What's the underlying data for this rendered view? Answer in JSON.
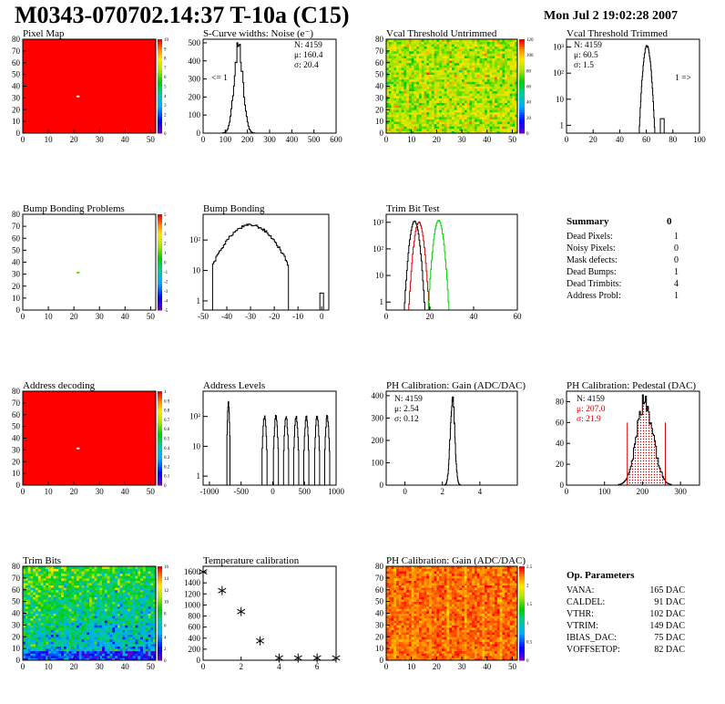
{
  "header": {
    "title": "M0343-070702.14:37 T-10a (C15)",
    "date": "Mon Jul  2 19:02:28 2007"
  },
  "panels": {
    "pixel_map": {
      "title": "Pixel Map"
    },
    "scurve": {
      "title": "S-Curve widths: Noise (e⁻)",
      "stats": [
        "N: 4159",
        "μ: 160.4",
        "σ: 20.4"
      ],
      "underflow_label": "<= 1"
    },
    "vcal_untrimmed": {
      "title": "Vcal Threshold Untrimmed"
    },
    "vcal_trimmed": {
      "title": "Vcal Threshold Trimmed",
      "stats": [
        "N: 4159",
        "μ: 60.5",
        "σ:  1.5"
      ],
      "overflow_label": "1 =>"
    },
    "bump_problems": {
      "title": "Bump Bonding Problems"
    },
    "bump_bonding": {
      "title": "Bump Bonding"
    },
    "trim_bit_test": {
      "title": "Trim Bit Test"
    },
    "address_decoding": {
      "title": "Address decoding"
    },
    "address_levels": {
      "title": "Address Levels"
    },
    "ph_gain": {
      "title": "PH Calibration: Gain (ADC/DAC)",
      "stats": [
        "N: 4159",
        "μ: 2.54",
        "σ: 0.12"
      ]
    },
    "ph_pedestal": {
      "title": "PH Calibration: Pedestal (DAC)",
      "stats": [
        "N: 4159",
        "μ: 207.0",
        "σ: 21.9"
      ]
    },
    "trim_bits": {
      "title": "Trim Bits"
    },
    "temperature": {
      "title": "Temperature calibration"
    },
    "ph_gain_map": {
      "title": "PH Calibration: Gain (ADC/DAC)"
    }
  },
  "summary": {
    "title": "Summary",
    "total": "0",
    "rows": [
      {
        "label": "Dead Pixels:",
        "value": "1"
      },
      {
        "label": "Noisy Pixels:",
        "value": "0"
      },
      {
        "label": "Mask defects:",
        "value": "0"
      },
      {
        "label": "Dead Bumps:",
        "value": "1"
      },
      {
        "label": "Dead Trimbits:",
        "value": "4"
      },
      {
        "label": "Address Probl:",
        "value": "1"
      }
    ]
  },
  "op_parameters": {
    "title": "Op. Parameters",
    "rows": [
      {
        "label": "VANA:",
        "value": "165 DAC"
      },
      {
        "label": "CALDEL:",
        "value": "91 DAC"
      },
      {
        "label": "VTHR:",
        "value": "102 DAC"
      },
      {
        "label": "VTRIM:",
        "value": "149 DAC"
      },
      {
        "label": "IBIAS_DAC:",
        "value": "75 DAC"
      },
      {
        "label": "VOFFSETOP:",
        "value": "82 DAC"
      }
    ]
  },
  "colors": {
    "map_red": "#ff0000",
    "green_curve": "#00cc00",
    "red_curve": "#cc0000"
  },
  "chart_data": [
    {
      "id": "pixel_map",
      "type": "heatmap",
      "title": "Pixel Map",
      "xlim": [
        0,
        52
      ],
      "ylim": [
        0,
        80
      ],
      "xticks": [
        "0",
        "10",
        "20",
        "30",
        "40",
        "50"
      ],
      "yticks": [
        "0",
        "10",
        "20",
        "30",
        "40",
        "50",
        "60",
        "70",
        "80"
      ],
      "zticks": [
        "0",
        "1",
        "2",
        "3",
        "4",
        "5",
        "6",
        "7",
        "8",
        "9",
        "10"
      ],
      "fill_value": 10,
      "anomalies": [
        {
          "x": 21,
          "y": 31,
          "z": 0
        }
      ]
    },
    {
      "id": "scurve",
      "type": "line",
      "title": "S-Curve widths: Noise (e⁻)",
      "xlim": [
        0,
        600
      ],
      "ylim": [
        0,
        520
      ],
      "xticks": [
        "0",
        "100",
        "200",
        "300",
        "400",
        "500",
        "600"
      ],
      "yticks": [
        "0",
        "100",
        "200",
        "300",
        "400",
        "500"
      ],
      "histogram": {
        "x0": 60,
        "x1": 330,
        "mean": 160,
        "sigma": 20,
        "peak": 480
      }
    },
    {
      "id": "vcal_untrimmed",
      "type": "heatmap",
      "title": "Vcal Threshold Untrimmed",
      "xlim": [
        0,
        52
      ],
      "ylim": [
        0,
        80
      ],
      "xticks": [
        "0",
        "10",
        "20",
        "30",
        "40",
        "50"
      ],
      "yticks": [
        "0",
        "10",
        "20",
        "30",
        "40",
        "50",
        "60",
        "70",
        "80"
      ],
      "zticks": [
        "0",
        "20",
        "40",
        "60",
        "80",
        "100",
        "120"
      ],
      "zmax": 120,
      "base_value": 84,
      "spread": 14
    },
    {
      "id": "vcal_trimmed",
      "type": "line",
      "title": "Vcal Threshold Trimmed",
      "log_y": true,
      "xlim": [
        0,
        100
      ],
      "ylim": [
        0.5,
        2000
      ],
      "xticks": [
        "0",
        "20",
        "40",
        "60",
        "80",
        "100"
      ],
      "yticks": [
        "1",
        "10",
        "10²",
        "10³"
      ],
      "histogram": {
        "x0": 50,
        "x1": 72,
        "mean": 60.5,
        "sigma": 1.5,
        "peak": 1100
      },
      "extra_bins": [
        {
          "x": 72,
          "y": 1
        }
      ]
    },
    {
      "id": "bump_problems",
      "type": "heatmap",
      "title": "Bump Bonding Problems",
      "xlim": [
        0,
        52
      ],
      "ylim": [
        0,
        80
      ],
      "xticks": [
        "0",
        "10",
        "20",
        "30",
        "40",
        "50"
      ],
      "yticks": [
        "0",
        "10",
        "20",
        "30",
        "40",
        "50",
        "60",
        "70",
        "80"
      ],
      "zticks": [
        "-5",
        "-4",
        "-3",
        "-2",
        "-1",
        "0",
        "1",
        "2",
        "3",
        "4",
        "5"
      ],
      "fill_value": null,
      "anomalies": [
        {
          "x": 21,
          "y": 31,
          "z": 1
        }
      ]
    },
    {
      "id": "bump_bonding",
      "type": "line",
      "title": "Bump Bonding",
      "log_y": true,
      "xlim": [
        -50,
        3
      ],
      "ylim": [
        0.5,
        700
      ],
      "xticks": [
        "-50",
        "-40",
        "-30",
        "-20",
        "-10",
        "0"
      ],
      "yticks": [
        "1",
        "10",
        "10²"
      ],
      "histogram": {
        "x0": -46,
        "x1": -14,
        "mean": -30,
        "sigma": 6.5,
        "peak": 310
      },
      "extra_bins": [
        {
          "x": 0,
          "y": 1
        }
      ]
    },
    {
      "id": "trim_bit_test",
      "type": "line",
      "title": "Trim Bit Test",
      "log_y": true,
      "xlim": [
        0,
        60
      ],
      "ylim": [
        0.5,
        2000
      ],
      "xticks": [
        "0",
        "20",
        "40",
        "60"
      ],
      "yticks": [
        "1",
        "10",
        "10²",
        "10³"
      ],
      "series": [
        {
          "color": "#000000",
          "x0": 8,
          "x1": 18,
          "mean": 13,
          "sigma": 1.2,
          "peak": 1100
        },
        {
          "color": "#cc0000",
          "x0": 10,
          "x1": 20,
          "mean": 15,
          "sigma": 1.2,
          "peak": 1000
        },
        {
          "color": "#00cc00",
          "x0": 19,
          "x1": 29,
          "mean": 24,
          "sigma": 1.2,
          "peak": 1200
        }
      ]
    },
    {
      "id": "address_decoding",
      "type": "heatmap",
      "title": "Address decoding",
      "xlim": [
        0,
        52
      ],
      "ylim": [
        0,
        80
      ],
      "xticks": [
        "0",
        "10",
        "20",
        "30",
        "40",
        "50"
      ],
      "yticks": [
        "0",
        "10",
        "20",
        "30",
        "40",
        "50",
        "60",
        "70",
        "80"
      ],
      "zticks": [
        "0",
        "0.1",
        "0.2",
        "0.3",
        "0.4",
        "0.5",
        "0.6",
        "0.7",
        "0.8",
        "0.9",
        "1"
      ],
      "fill_value": 1,
      "anomalies": [
        {
          "x": 21,
          "y": 31,
          "z": 0
        }
      ]
    },
    {
      "id": "address_levels",
      "type": "line",
      "title": "Address Levels",
      "log_y": true,
      "xlim": [
        -1100,
        1000
      ],
      "ylim": [
        0.5,
        700
      ],
      "xticks": [
        "-1000",
        "-500",
        "0",
        "500",
        "1000"
      ],
      "yticks": [
        "1",
        "10",
        "10²"
      ],
      "peaks": [
        {
          "x": -700,
          "h": 300,
          "w": 24
        },
        {
          "x": -130,
          "h": 100,
          "w": 40
        },
        {
          "x": 50,
          "h": 100,
          "w": 40
        },
        {
          "x": 210,
          "h": 100,
          "w": 40
        },
        {
          "x": 370,
          "h": 100,
          "w": 40
        },
        {
          "x": 530,
          "h": 100,
          "w": 40
        },
        {
          "x": 700,
          "h": 100,
          "w": 40
        },
        {
          "x": 860,
          "h": 100,
          "w": 40
        }
      ]
    },
    {
      "id": "ph_gain",
      "type": "line",
      "title": "PH Calibration: Gain (ADC/DAC)",
      "xlim": [
        -1,
        6
      ],
      "ylim": [
        0,
        420
      ],
      "xticks": [
        "0",
        "2",
        "4"
      ],
      "yticks": [
        "0",
        "100",
        "200",
        "300",
        "400"
      ],
      "histogram": {
        "x0": 1.9,
        "x1": 3.2,
        "mean": 2.54,
        "sigma": 0.12,
        "peak": 400
      }
    },
    {
      "id": "ph_pedestal",
      "type": "line",
      "title": "PH Calibration: Pedestal (DAC)",
      "xlim": [
        0,
        350
      ],
      "ylim": [
        0,
        90
      ],
      "xticks": [
        "0",
        "100",
        "200",
        "300"
      ],
      "yticks": [
        "0",
        "20",
        "40",
        "60",
        "80"
      ],
      "histogram": {
        "x0": 100,
        "x1": 310,
        "mean": 207,
        "sigma": 22,
        "peak": 80
      },
      "fit_range": [
        160,
        260
      ]
    },
    {
      "id": "trim_bits",
      "type": "heatmap",
      "title": "Trim Bits",
      "xlim": [
        0,
        52
      ],
      "ylim": [
        0,
        80
      ],
      "xticks": [
        "0",
        "10",
        "20",
        "30",
        "40",
        "50"
      ],
      "yticks": [
        "0",
        "10",
        "20",
        "30",
        "40",
        "50",
        "60",
        "70",
        "80"
      ],
      "zticks": [
        "0",
        "2",
        "4",
        "6",
        "8",
        "10",
        "12",
        "14",
        "16"
      ],
      "zmax": 16,
      "base_value": 8,
      "spread": 2.5
    },
    {
      "id": "temperature",
      "type": "scatter",
      "title": "Temperature calibration",
      "xlim": [
        0,
        7
      ],
      "ylim": [
        0,
        1700
      ],
      "xticks": [
        "0",
        "2",
        "4",
        "6"
      ],
      "yticks": [
        "0",
        "200",
        "400",
        "600",
        "800",
        "1000",
        "1200",
        "1400",
        "1600"
      ],
      "x": [
        0,
        1,
        2,
        3,
        4,
        5,
        6,
        7
      ],
      "y": [
        1600,
        1260,
        880,
        350,
        40,
        40,
        40,
        40
      ]
    },
    {
      "id": "ph_gain_map",
      "type": "heatmap",
      "title": "PH Calibration: Gain (ADC/DAC)",
      "xlim": [
        0,
        52
      ],
      "ylim": [
        0,
        80
      ],
      "xticks": [
        "0",
        "10",
        "20",
        "30",
        "40",
        "50"
      ],
      "yticks": [
        "0",
        "10",
        "20",
        "30",
        "40",
        "50",
        "60",
        "70",
        "80"
      ],
      "zticks": [
        "0",
        "0.5",
        "1",
        "1.5",
        "2",
        "2.5"
      ],
      "zmax": 2.7,
      "base_value": 2.5,
      "spread": 0.15
    }
  ]
}
